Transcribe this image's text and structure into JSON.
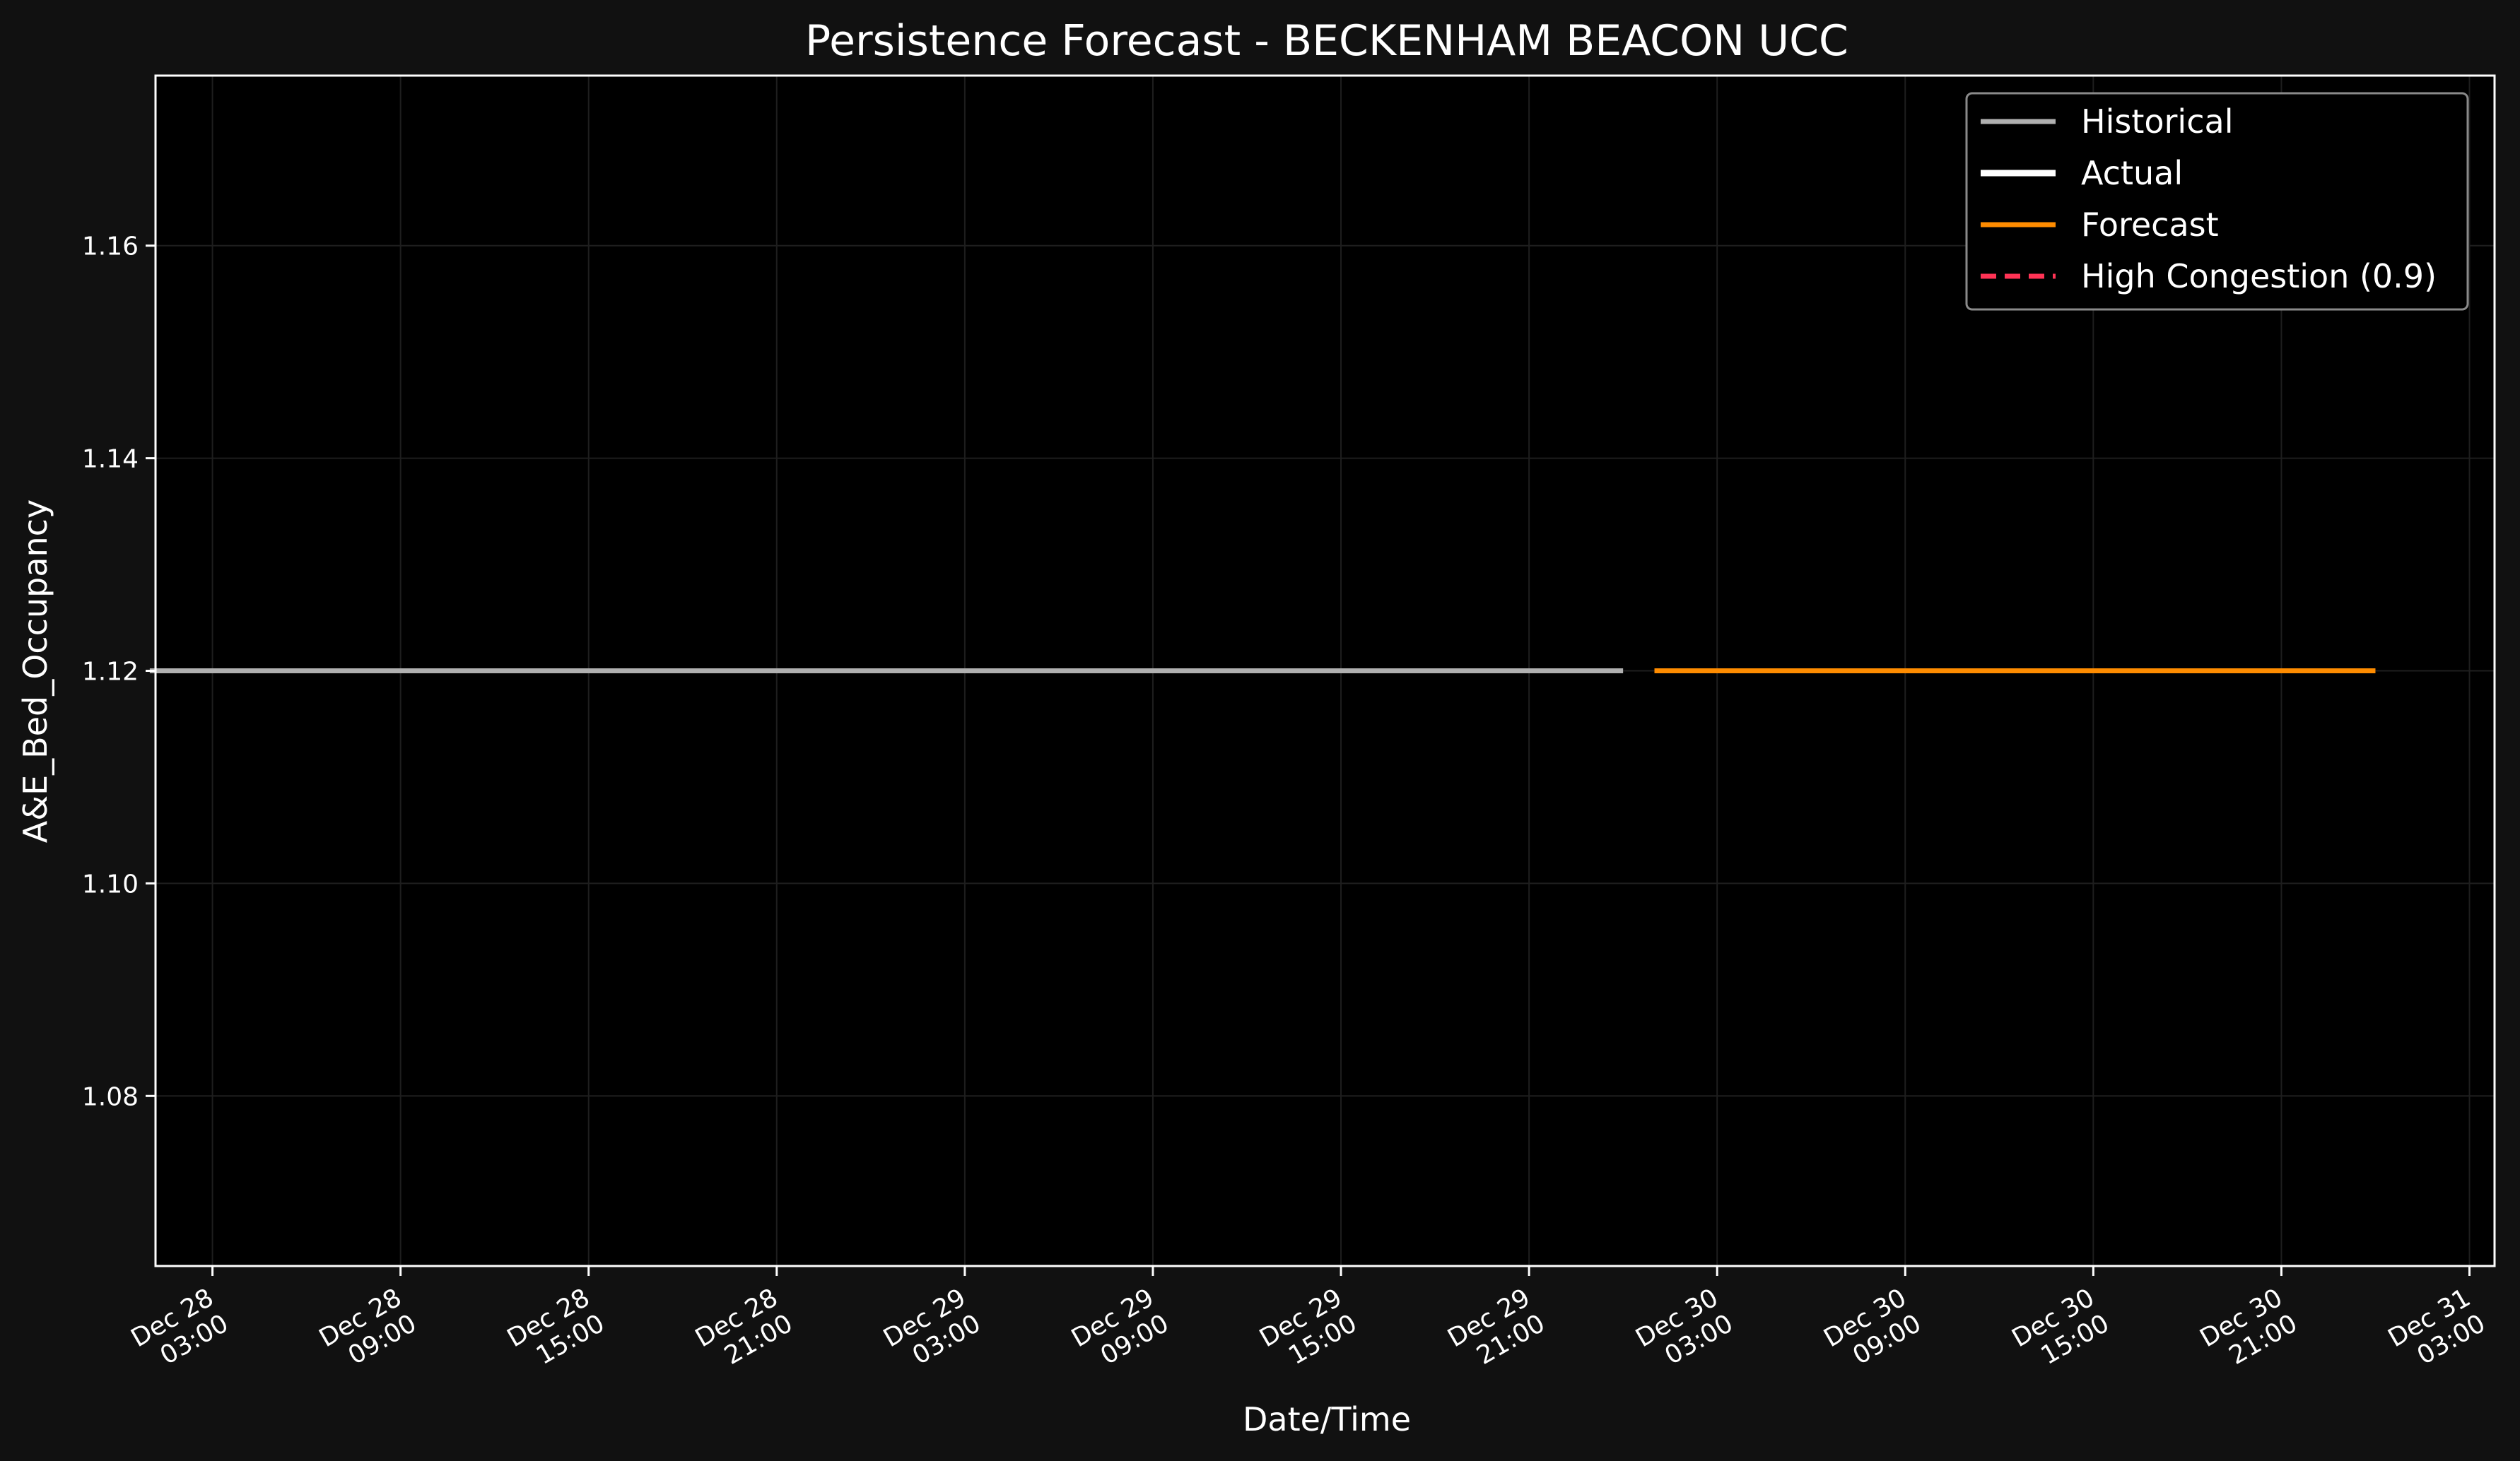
{
  "chart_data": {
    "type": "line",
    "title": "Persistence Forecast - BECKENHAM BEACON UCC",
    "xlabel": "Date/Time",
    "ylabel": "A&E_Bed_Occupancy",
    "xlim": [
      "2025-12-28T01:11",
      "2025-12-31T03:48"
    ],
    "ylim": [
      1.064,
      1.176
    ],
    "x_ticks": [
      {
        "value": "2025-12-28T03:00",
        "label": [
          "Dec 28",
          "03:00"
        ]
      },
      {
        "value": "2025-12-28T09:00",
        "label": [
          "Dec 28",
          "09:00"
        ]
      },
      {
        "value": "2025-12-28T15:00",
        "label": [
          "Dec 28",
          "15:00"
        ]
      },
      {
        "value": "2025-12-28T21:00",
        "label": [
          "Dec 28",
          "21:00"
        ]
      },
      {
        "value": "2025-12-29T03:00",
        "label": [
          "Dec 29",
          "03:00"
        ]
      },
      {
        "value": "2025-12-29T09:00",
        "label": [
          "Dec 29",
          "09:00"
        ]
      },
      {
        "value": "2025-12-29T15:00",
        "label": [
          "Dec 29",
          "15:00"
        ]
      },
      {
        "value": "2025-12-29T21:00",
        "label": [
          "Dec 29",
          "21:00"
        ]
      },
      {
        "value": "2025-12-30T03:00",
        "label": [
          "Dec 30",
          "03:00"
        ]
      },
      {
        "value": "2025-12-30T09:00",
        "label": [
          "Dec 30",
          "09:00"
        ]
      },
      {
        "value": "2025-12-30T15:00",
        "label": [
          "Dec 30",
          "15:00"
        ]
      },
      {
        "value": "2025-12-30T21:00",
        "label": [
          "Dec 30",
          "21:00"
        ]
      },
      {
        "value": "2025-12-31T03:00",
        "label": [
          "Dec 31",
          "03:00"
        ]
      }
    ],
    "y_ticks": [
      {
        "value": 1.08,
        "label": "1.08"
      },
      {
        "value": 1.1,
        "label": "1.10"
      },
      {
        "value": 1.12,
        "label": "1.12"
      },
      {
        "value": 1.14,
        "label": "1.14"
      },
      {
        "value": 1.16,
        "label": "1.16"
      }
    ],
    "grid": true,
    "legend_position": "top-right",
    "series": [
      {
        "name": "Historical",
        "color": "#b0b0b0",
        "style": "solid",
        "points": [
          {
            "x": "2025-12-28T01:00",
            "y": 1.12
          },
          {
            "x": "2025-12-30T00:00",
            "y": 1.12
          }
        ]
      },
      {
        "name": "Actual",
        "color": "#ffffff",
        "style": "solid",
        "points": []
      },
      {
        "name": "Forecast",
        "color": "#ff8c00",
        "style": "solid",
        "points": [
          {
            "x": "2025-12-30T01:00",
            "y": 1.12
          },
          {
            "x": "2025-12-31T00:00",
            "y": 1.12
          }
        ]
      },
      {
        "name": "High Congestion (0.9)",
        "color": "#ff3355",
        "style": "dashed",
        "y": 0.9
      }
    ]
  }
}
